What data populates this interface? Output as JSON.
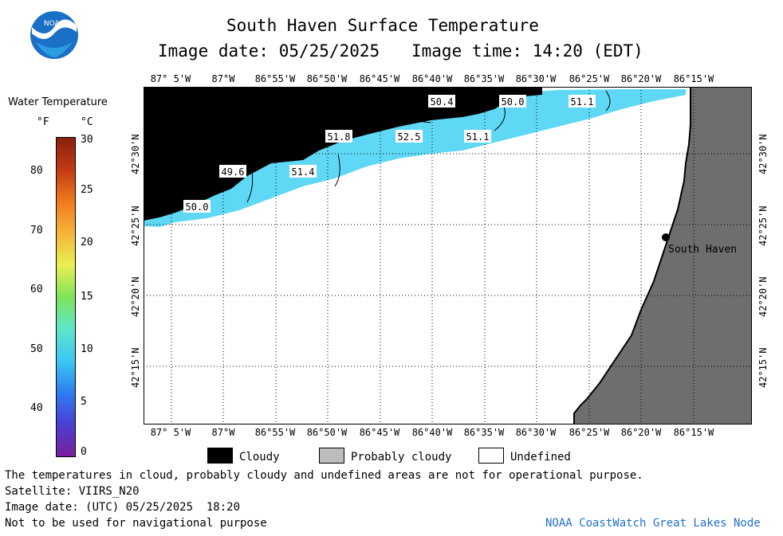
{
  "header": {
    "title": "South Haven Surface Temperature",
    "image_date_label": "Image date: 05/25/2025",
    "image_time_label": "Image time: 14:20 (EDT)"
  },
  "logo": {
    "text": "NOAA",
    "color": "#1a6fc6"
  },
  "colorbar": {
    "title": "Water Temperature",
    "unit_f": "°F",
    "unit_c": "°C",
    "f_ticks": [
      "80",
      "70",
      "60",
      "50",
      "40"
    ],
    "c_ticks": [
      "30",
      "25",
      "20",
      "15",
      "10",
      "5",
      "0"
    ],
    "colors": [
      "#7a1f9e",
      "#4a3fd0",
      "#2d7ef0",
      "#3cc6f2",
      "#5ee6c8",
      "#7fe35a",
      "#e8f050",
      "#f6b43a",
      "#f07a1e",
      "#c23a14",
      "#8a1f10"
    ]
  },
  "map": {
    "lon_labels": [
      "87° 5'W",
      "87°W",
      "86°55'W",
      "86°50'W",
      "86°45'W",
      "86°40'W",
      "86°35'W",
      "86°30'W",
      "86°25'W",
      "86°20'W",
      "86°15'W"
    ],
    "lat_labels": [
      "42°30'N",
      "42°25'N",
      "42°20'N",
      "42°15'N"
    ],
    "temp_labels": [
      "50.4",
      "50.0",
      "51.1",
      "51.8",
      "52.5",
      "51.1",
      "49.6",
      "51.4",
      "50.0"
    ],
    "place_name": "South Haven",
    "colors": {
      "cloud": "#000000",
      "water": "#5fd8f5",
      "land": "#6e6e6e",
      "undefined": "#ffffff"
    }
  },
  "legend": {
    "cloudy": "Cloudy",
    "probably_cloudy": "Probably cloudy",
    "undefined": "Undefined"
  },
  "footer": {
    "disclaimer": "The temperatures in cloud, probably cloudy and undefined areas are not for operational purpose.",
    "satellite": "Satellite: VIIRS_N20",
    "utc_date": "Image date: (UTC) 05/25/2025  18:20",
    "nav_warning": "Not to be used for navigational purpose",
    "credit": "NOAA CoastWatch Great Lakes Node",
    "credit_color": "#1f6fd0"
  }
}
